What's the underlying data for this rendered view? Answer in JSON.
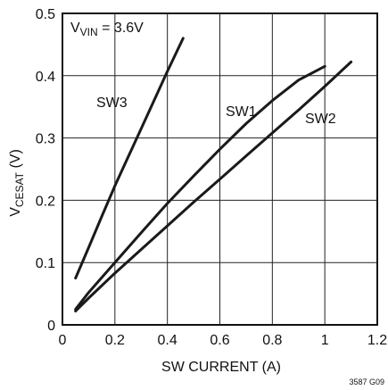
{
  "chart_data": {
    "type": "line",
    "title": "",
    "xlabel": "SW CURRENT (A)",
    "ylabel": "V",
    "ylabel_sub": "CESAT",
    "ylabel_suffix": " (V)",
    "xlim": [
      0,
      1.2
    ],
    "ylim": [
      0,
      0.5
    ],
    "xticks": [
      0,
      0.2,
      0.4,
      0.6,
      0.8,
      1,
      1.2
    ],
    "yticks": [
      0,
      0.1,
      0.2,
      0.3,
      0.4,
      0.5
    ],
    "xtick_labels": [
      "0",
      "0.2",
      "0.4",
      "0.6",
      "0.8",
      "1",
      "1.2"
    ],
    "ytick_labels": [
      "0",
      "0.1",
      "0.2",
      "0.3",
      "0.4",
      "0.5"
    ],
    "grid": true,
    "annotation": {
      "main": "V",
      "sub": "VIN",
      "suffix": " = 3.6V"
    },
    "figure_code": "3587 G09",
    "series": [
      {
        "name": "SW3",
        "x": [
          0.05,
          0.1,
          0.15,
          0.2,
          0.25,
          0.3,
          0.35,
          0.4,
          0.46
        ],
        "y": [
          0.075,
          0.124,
          0.174,
          0.223,
          0.269,
          0.315,
          0.361,
          0.407,
          0.46
        ]
      },
      {
        "name": "SW1",
        "x": [
          0.05,
          0.1,
          0.2,
          0.3,
          0.4,
          0.5,
          0.6,
          0.7,
          0.8,
          0.9,
          1.0
        ],
        "y": [
          0.025,
          0.052,
          0.1,
          0.148,
          0.195,
          0.239,
          0.282,
          0.323,
          0.36,
          0.393,
          0.415
        ]
      },
      {
        "name": "SW2",
        "x": [
          0.05,
          0.1,
          0.2,
          0.3,
          0.4,
          0.5,
          0.6,
          0.7,
          0.8,
          0.9,
          1.0,
          1.1
        ],
        "y": [
          0.022,
          0.043,
          0.083,
          0.121,
          0.159,
          0.197,
          0.234,
          0.271,
          0.308,
          0.345,
          0.383,
          0.422
        ]
      }
    ]
  }
}
